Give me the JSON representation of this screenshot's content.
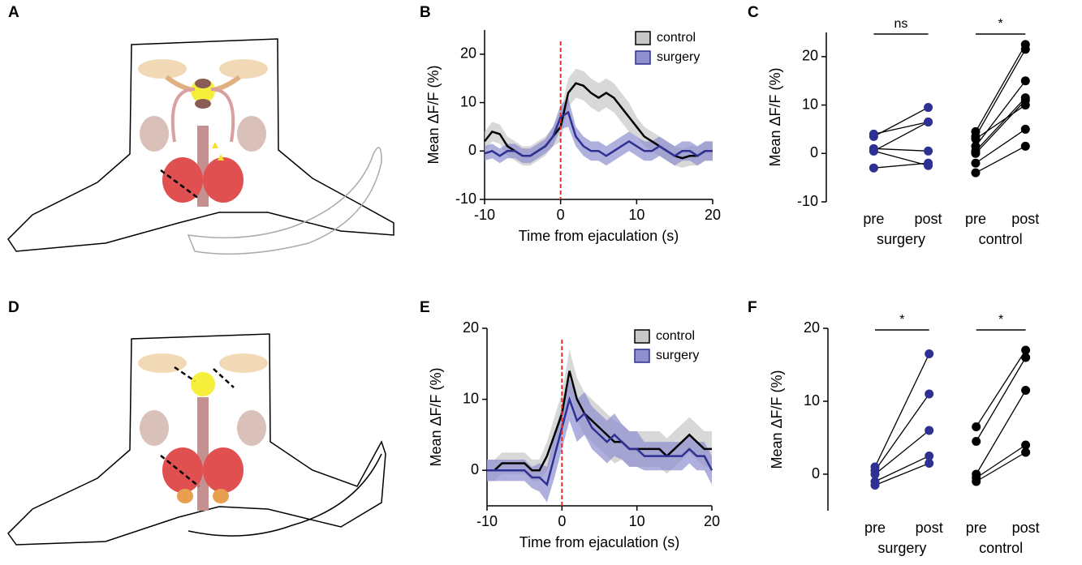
{
  "diagrams": [
    {
      "panel": "A"
    },
    {
      "panel": "D"
    }
  ],
  "chart_data": [
    {
      "type": "line",
      "panel": "B",
      "y_label": "Mean ΔF/F (%)",
      "x_label": "Time from ejaculation (s)",
      "xlim": [
        -10,
        20
      ],
      "xticks": [
        -10,
        0,
        10,
        20
      ],
      "ylim": [
        -10,
        25
      ],
      "yticks": [
        -10,
        0,
        10,
        20
      ],
      "vline": 0,
      "vline_color": "#e0312b",
      "legend": "upper right",
      "x": [
        -10,
        -9,
        -8,
        -7,
        -6,
        -5,
        -4,
        -3,
        -2,
        -1,
        0,
        1,
        2,
        3,
        4,
        5,
        6,
        7,
        8,
        9,
        10,
        11,
        12,
        13,
        14,
        15,
        16,
        17,
        18,
        19,
        20
      ],
      "series": [
        {
          "name": "control",
          "color": "#000000",
          "band_color": "#c8c8c8",
          "values": [
            2,
            4,
            3.5,
            1,
            0,
            -1,
            -1,
            0,
            1,
            3,
            5,
            12,
            14,
            13.5,
            12,
            11,
            12,
            11,
            9,
            7,
            5,
            3,
            2,
            1,
            0,
            -1,
            -1.5,
            -1,
            -1,
            0,
            0
          ],
          "errors": [
            2,
            2,
            2,
            2,
            2,
            2,
            2,
            2,
            2,
            2,
            3,
            3,
            3,
            3,
            3,
            3,
            3,
            3,
            3,
            3,
            2,
            2,
            2,
            2,
            2,
            2,
            2,
            2,
            2,
            2,
            2
          ]
        },
        {
          "name": "surgery",
          "color": "#2e3192",
          "band_color": "#8f8fd0",
          "values": [
            -0.5,
            0,
            -1,
            0,
            0,
            -1,
            -1,
            0,
            1,
            3,
            7,
            8,
            3,
            1,
            0,
            0,
            -1,
            0,
            1,
            2,
            1,
            0,
            0,
            1,
            0,
            -1,
            0,
            0,
            -1,
            0,
            0
          ],
          "errors": [
            1.5,
            1.5,
            1.5,
            1.5,
            1.5,
            1.5,
            1.5,
            1.5,
            1.5,
            2,
            2.5,
            3,
            2,
            2,
            2,
            2,
            2,
            2,
            2,
            2,
            2,
            2,
            2,
            2,
            2,
            2,
            2,
            2,
            2,
            2,
            2
          ]
        }
      ]
    },
    {
      "type": "paired",
      "panel": "C",
      "y_label": "Mean ΔF/F (%)",
      "ylim": [
        -10,
        25
      ],
      "yticks": [
        -10,
        0,
        10,
        20
      ],
      "conditions": [
        "pre",
        "post"
      ],
      "groups": [
        {
          "name": "surgery",
          "color": "#2e3192",
          "significance": "ns",
          "pre": [
            4,
            3.5,
            1,
            0.5,
            0.5,
            -3
          ],
          "post": [
            6.5,
            9.5,
            0.5,
            6.5,
            -2.5,
            -2
          ]
        },
        {
          "name": "control",
          "color": "#000000",
          "significance": "*",
          "pre": [
            4.5,
            3.5,
            1.5,
            0.5,
            0,
            -2,
            -4,
            3
          ],
          "post": [
            22.5,
            21.5,
            15,
            11.5,
            11,
            5,
            1.5,
            10
          ]
        }
      ]
    },
    {
      "type": "line",
      "panel": "E",
      "y_label": "Mean ΔF/F (%)",
      "x_label": "Time from ejaculation (s)",
      "xlim": [
        -10,
        20
      ],
      "xticks": [
        -10,
        0,
        10,
        20
      ],
      "ylim": [
        -5,
        20
      ],
      "yticks": [
        0,
        10,
        20
      ],
      "vline": 0,
      "vline_color": "#e0312b",
      "legend": "upper right",
      "x": [
        -10,
        -9,
        -8,
        -7,
        -6,
        -5,
        -4,
        -3,
        -2,
        -1,
        0,
        1,
        2,
        3,
        4,
        5,
        6,
        7,
        8,
        9,
        10,
        11,
        12,
        13,
        14,
        15,
        16,
        17,
        18,
        19,
        20
      ],
      "series": [
        {
          "name": "control",
          "color": "#000000",
          "band_color": "#c8c8c8",
          "values": [
            0,
            0,
            1,
            1,
            1,
            1,
            0,
            0,
            2,
            5,
            8,
            14,
            10,
            8,
            7,
            6,
            5,
            4,
            4,
            3,
            3,
            3,
            3,
            3,
            2,
            3,
            4,
            5,
            4,
            3,
            3
          ],
          "errors": [
            1.5,
            1.5,
            1.5,
            1.5,
            1.5,
            1.5,
            1.5,
            1.5,
            2,
            2.5,
            3,
            3,
            3,
            3,
            3,
            3,
            3,
            3,
            2.5,
            2.5,
            2.5,
            2.5,
            2.5,
            2.5,
            2.5,
            2.5,
            2.5,
            2.5,
            2.5,
            2.5,
            2.5
          ]
        },
        {
          "name": "surgery",
          "color": "#2e3192",
          "band_color": "#8f8fd0",
          "values": [
            0,
            0,
            0,
            0,
            0,
            0,
            -1,
            -1,
            -2,
            2,
            6,
            10,
            7,
            8,
            6,
            5,
            4,
            5,
            4,
            3,
            3,
            2,
            2,
            2,
            2,
            2,
            2,
            3,
            2,
            2,
            0
          ],
          "errors": [
            1.5,
            1.5,
            1.5,
            1.5,
            1.5,
            1.5,
            1.5,
            2,
            2.5,
            3,
            3,
            3,
            3,
            3,
            3,
            3,
            3,
            3,
            2.5,
            2.5,
            2.5,
            2,
            2,
            2,
            2,
            2,
            2,
            2,
            2,
            2,
            2
          ]
        }
      ]
    },
    {
      "type": "paired",
      "panel": "F",
      "y_label": "Mean ΔF/F (%)",
      "ylim": [
        -5,
        20
      ],
      "yticks": [
        0,
        10,
        20
      ],
      "conditions": [
        "pre",
        "post"
      ],
      "groups": [
        {
          "name": "surgery",
          "color": "#2e3192",
          "significance": "*",
          "pre": [
            1,
            0.5,
            0,
            -1,
            -1.5
          ],
          "post": [
            16.5,
            11,
            6,
            2.5,
            1.5
          ]
        },
        {
          "name": "control",
          "color": "#000000",
          "significance": "*",
          "pre": [
            6.5,
            4.5,
            0,
            -0.5,
            -1
          ],
          "post": [
            17,
            16,
            11.5,
            4,
            3
          ]
        }
      ]
    }
  ]
}
